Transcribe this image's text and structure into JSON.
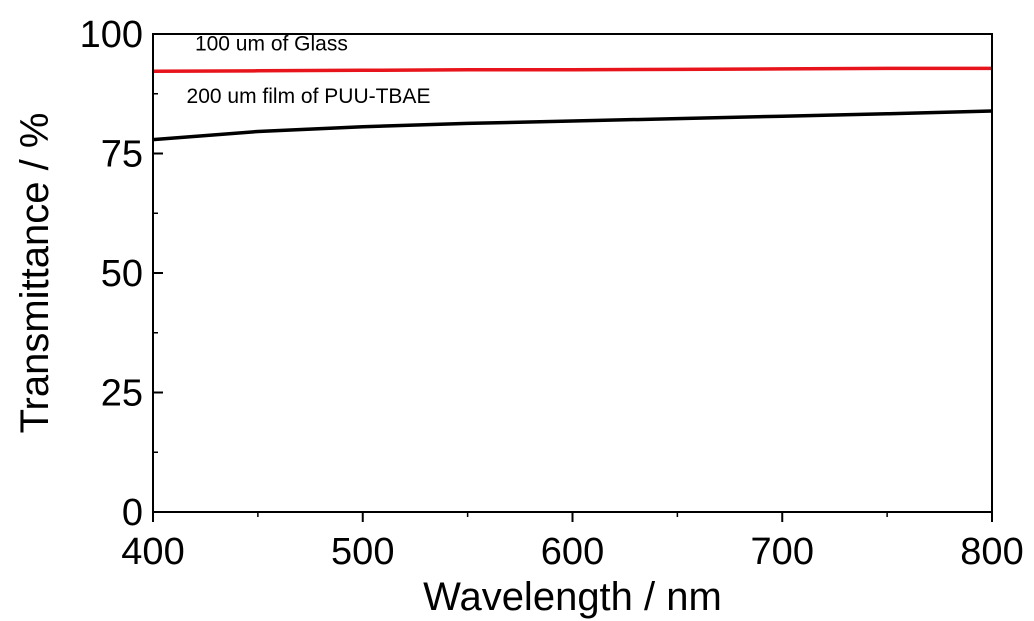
{
  "chart_data": {
    "type": "line",
    "xlabel": "Wavelength / nm",
    "ylabel": "Transmittance / %",
    "xlim": [
      400,
      800
    ],
    "ylim": [
      0,
      100
    ],
    "x_ticks": [
      400,
      500,
      600,
      700,
      800
    ],
    "y_ticks": [
      0,
      25,
      50,
      75,
      100
    ],
    "x_minor_step": 50,
    "y_minor_step": 12.5,
    "grid": false,
    "legend": "none",
    "series": [
      {
        "color": "#e8141b",
        "x": [
          400,
          450,
          500,
          550,
          600,
          650,
          700,
          750,
          800
        ],
        "y": [
          92.2,
          92.3,
          92.4,
          92.5,
          92.5,
          92.6,
          92.7,
          92.8,
          92.8
        ]
      },
      {
        "color": "#000000",
        "x": [
          400,
          450,
          500,
          550,
          600,
          650,
          700,
          750,
          800
        ],
        "y": [
          77.9,
          79.6,
          80.6,
          81.3,
          81.8,
          82.3,
          82.8,
          83.3,
          83.9
        ]
      }
    ],
    "annotations": [
      {
        "text": "100 um of Glass",
        "x": 420,
        "y": 96.5
      },
      {
        "text": "200 um film of PUU-TBAE",
        "x": 416,
        "y": 85.6
      }
    ]
  }
}
